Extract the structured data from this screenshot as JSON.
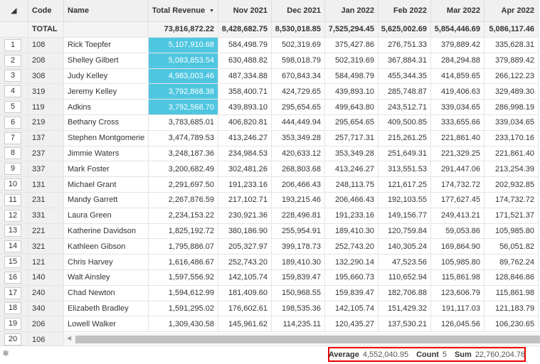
{
  "columns": [
    "",
    "Code",
    "Name",
    "Total Revenue",
    "Nov 2021",
    "Dec 2021",
    "Jan 2022",
    "Feb 2022",
    "Mar 2022",
    "Apr 2022"
  ],
  "sort_icon": "caret-down-icon",
  "total": {
    "label": "TOTAL",
    "values": [
      "73,816,872.22",
      "8,428,682.75",
      "8,530,018.85",
      "7,525,294.45",
      "5,625,002.69",
      "5,854,446.69",
      "5,086,117.46"
    ]
  },
  "rows": [
    {
      "n": "1",
      "code": "108",
      "name": "Rick Toepfer",
      "values": [
        "5,107,910.68",
        "584,498.79",
        "502,319.69",
        "375,427.86",
        "276,751.33",
        "379,889.42",
        "335,628.31"
      ],
      "selected": true
    },
    {
      "n": "2",
      "code": "208",
      "name": "Shelley Gilbert",
      "values": [
        "5,083,853.54",
        "630,488.82",
        "598,018.79",
        "502,319.69",
        "367,884.31",
        "284,294.88",
        "379,889.42"
      ],
      "selected": true
    },
    {
      "n": "3",
      "code": "308",
      "name": "Judy Kelley",
      "values": [
        "4,983,003.46",
        "487,334.88",
        "670,843.34",
        "584,498.79",
        "455,344.35",
        "414,859.65",
        "266,122.23"
      ],
      "selected": true
    },
    {
      "n": "4",
      "code": "319",
      "name": "Jeremy Kelley",
      "values": [
        "3,792,868.38",
        "358,400.71",
        "424,729.65",
        "439,893.10",
        "285,748.87",
        "419,406.63",
        "329,489.30"
      ],
      "selected": true
    },
    {
      "n": "5",
      "code": "119",
      "name": "Adkins",
      "values": [
        "3,792,568.70",
        "439,893.10",
        "295,654.65",
        "499,643.80",
        "243,512.71",
        "339,034.65",
        "286,998.19"
      ],
      "selected": true
    },
    {
      "n": "6",
      "code": "219",
      "name": "Bethany Cross",
      "values": [
        "3,783,685.01",
        "406,820.81",
        "444,449.94",
        "295,654.65",
        "409,500.85",
        "333,655.66",
        "339,034.65"
      ]
    },
    {
      "n": "7",
      "code": "137",
      "name": "Stephen Montgomerie",
      "values": [
        "3,474,789.53",
        "413,246.27",
        "353,349.28",
        "257,717.31",
        "215,261.25",
        "221,861.40",
        "233,170.16"
      ]
    },
    {
      "n": "8",
      "code": "237",
      "name": "Jimmie Waters",
      "values": [
        "3,248,187.36",
        "234,984.53",
        "420,633.12",
        "353,349.28",
        "251,649.31",
        "221,329.25",
        "221,861.40"
      ]
    },
    {
      "n": "9",
      "code": "337",
      "name": "Mark Foster",
      "values": [
        "3,200,682.49",
        "302,481.26",
        "268,803.68",
        "413,246.27",
        "313,551.53",
        "291,447.06",
        "213,254.39"
      ]
    },
    {
      "n": "10",
      "code": "131",
      "name": "Michael Grant",
      "values": [
        "2,291,697.50",
        "191,233.16",
        "206,466.43",
        "248,113.75",
        "121,617.25",
        "174,732.72",
        "202,932.85"
      ]
    },
    {
      "n": "11",
      "code": "231",
      "name": "Mandy Garrett",
      "values": [
        "2,267,876.59",
        "217,102.71",
        "193,215.46",
        "206,466.43",
        "192,103.55",
        "177,627.45",
        "174,732.72"
      ]
    },
    {
      "n": "12",
      "code": "331",
      "name": "Laura Green",
      "values": [
        "2,234,153.22",
        "230,921.36",
        "228,496.81",
        "191,233.16",
        "149,156.77",
        "249,413.21",
        "171,521.37"
      ]
    },
    {
      "n": "13",
      "code": "221",
      "name": "Katherine Davidson",
      "values": [
        "1,825,192.72",
        "380,186.90",
        "255,954.91",
        "189,410.30",
        "120,759.84",
        "59,053.86",
        "105,985.80"
      ]
    },
    {
      "n": "14",
      "code": "321",
      "name": "Kathleen Gibson",
      "values": [
        "1,795,886.07",
        "205,327.97",
        "399,178.73",
        "252,743.20",
        "140,305.24",
        "169,864.90",
        "56,051.82"
      ]
    },
    {
      "n": "15",
      "code": "121",
      "name": "Chris Harvey",
      "values": [
        "1,616,486.67",
        "252,743.20",
        "189,410.30",
        "132,290.14",
        "47,523.56",
        "105,985.80",
        "89,762.24"
      ]
    },
    {
      "n": "16",
      "code": "140",
      "name": "Walt Ainsley",
      "values": [
        "1,597,556.92",
        "142,105.74",
        "159,839.47",
        "195,660.73",
        "110,652.94",
        "115,861.98",
        "128,846.86"
      ]
    },
    {
      "n": "17",
      "code": "240",
      "name": "Chad Newton",
      "values": [
        "1,594,612.99",
        "181,409.60",
        "150,968.55",
        "159,839.47",
        "182,706.88",
        "123,606.79",
        "115,861.98"
      ]
    },
    {
      "n": "18",
      "code": "340",
      "name": "Elizabeth Bradley",
      "values": [
        "1,591,295.02",
        "176,602.61",
        "198,535.36",
        "142,105.74",
        "151,429.32",
        "191,117.03",
        "121,183.79"
      ]
    },
    {
      "n": "19",
      "code": "206",
      "name": "Lowell Walker",
      "values": [
        "1,309,430.58",
        "145,961.62",
        "114,235.11",
        "120,435.27",
        "137,530.21",
        "126,045.56",
        "106,230.65"
      ]
    },
    {
      "n": "20",
      "code": "106",
      "name": "",
      "values": []
    }
  ],
  "status": {
    "average_label": "Average",
    "average": "4,552,040.95",
    "count_label": "Count",
    "count": "5",
    "sum_label": "Sum",
    "sum": "22,760,204.76"
  },
  "freeze_icon": "snowflake-icon",
  "selection_color": "#4fc6e0"
}
